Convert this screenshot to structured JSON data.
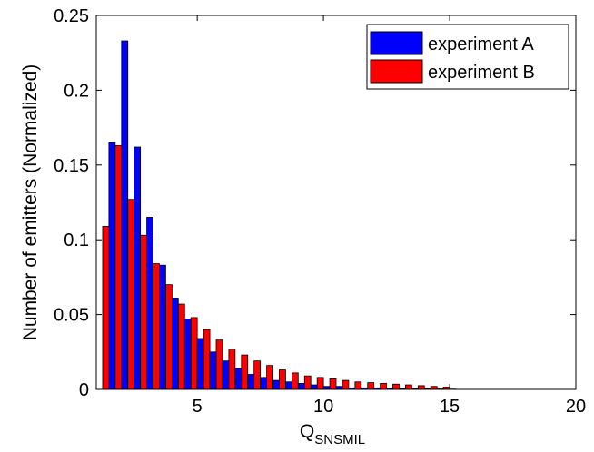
{
  "chart_data": {
    "type": "bar",
    "xlabel": {
      "main": "Q",
      "sub": "SNSMIL"
    },
    "ylabel": "Number of emitters (Normalized)",
    "xlim": [
      1,
      20
    ],
    "ylim": [
      0,
      0.25
    ],
    "xticks": [
      5,
      10,
      15,
      20
    ],
    "yticks": [
      0,
      0.05,
      0.1,
      0.15,
      0.2,
      0.25
    ],
    "ytick_labels": [
      "0",
      "0.05",
      "0.1",
      "0.15",
      "0.2",
      "0.25"
    ],
    "xtick_labels": [
      "5",
      "10",
      "15",
      "20"
    ],
    "grid": false,
    "legend_position": "top-right",
    "bin_width": 0.5,
    "x": [
      1.5,
      2.0,
      2.5,
      3.0,
      3.5,
      4.0,
      4.5,
      5.0,
      5.5,
      6.0,
      6.5,
      7.0,
      7.5,
      8.0,
      8.5,
      9.0,
      9.5,
      10.0,
      10.5,
      11.0,
      11.5,
      12.0,
      12.5,
      13.0,
      13.5,
      14.0,
      14.5,
      15.0
    ],
    "series": [
      {
        "name": "experiment A",
        "color": "#0000ff",
        "values": [
          0.165,
          0.233,
          0.162,
          0.115,
          0.083,
          0.061,
          0.047,
          0.034,
          0.025,
          0.019,
          0.014,
          0.01,
          0.008,
          0.006,
          0.005,
          0.004,
          0.003,
          0.002,
          0.002,
          0.001,
          0.001,
          0.001,
          0.0008,
          0.0006,
          0.0005,
          0.0004,
          0.0003,
          0.0002
        ]
      },
      {
        "name": "experiment B",
        "color": "#ff0000",
        "values": [
          0.109,
          0.163,
          0.127,
          0.103,
          0.084,
          0.07,
          0.057,
          0.048,
          0.04,
          0.033,
          0.027,
          0.023,
          0.019,
          0.016,
          0.013,
          0.011,
          0.009,
          0.008,
          0.007,
          0.006,
          0.005,
          0.0045,
          0.004,
          0.0035,
          0.003,
          0.0025,
          0.002,
          0.0015
        ]
      }
    ]
  }
}
